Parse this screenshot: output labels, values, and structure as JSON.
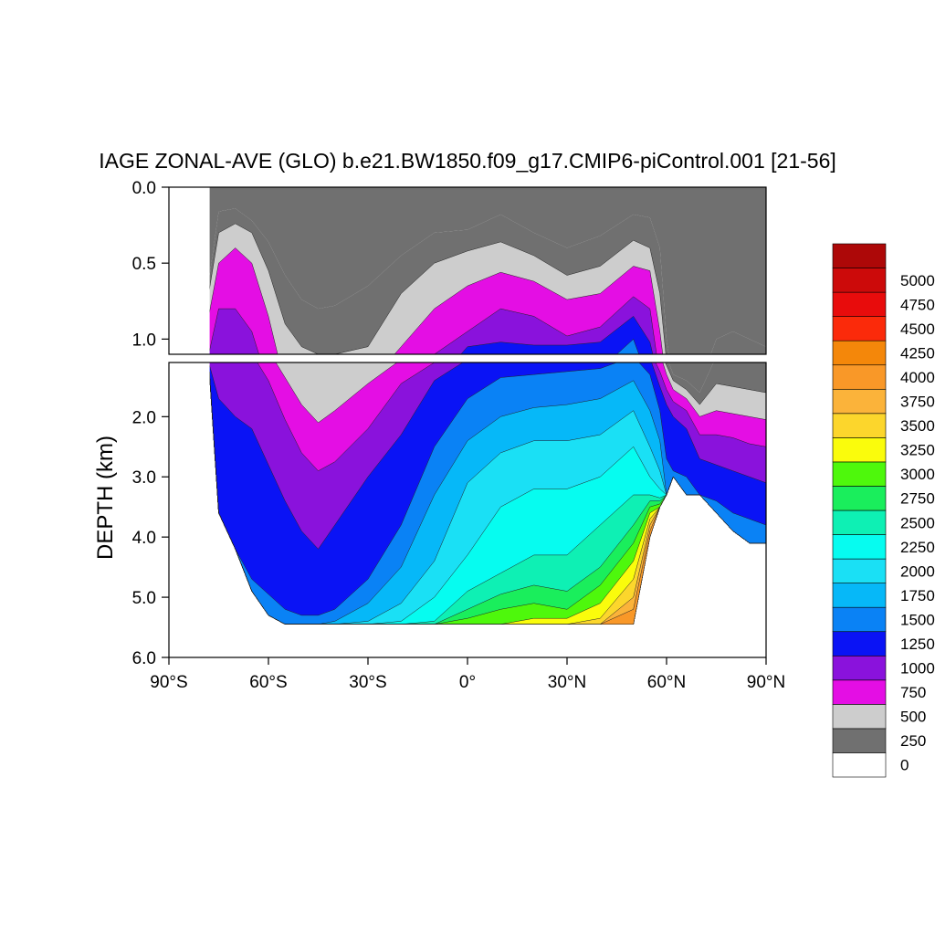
{
  "chart_data": {
    "type": "contour",
    "title": "IAGE ZONAL-AVE (GLO) b.e21.BW1850.f09_g17.CMIP6-piControl.001 [21-56]",
    "ylabel": "DEPTH (km)",
    "xlabel": "",
    "xlim": [
      -90,
      90
    ],
    "x_ticks": [
      {
        "value": -90,
        "label": "90°S"
      },
      {
        "value": -60,
        "label": "60°S"
      },
      {
        "value": -30,
        "label": "30°S"
      },
      {
        "value": 0,
        "label": "0°"
      },
      {
        "value": 30,
        "label": "30°N"
      },
      {
        "value": 60,
        "label": "60°N"
      },
      {
        "value": 90,
        "label": "90°N"
      }
    ],
    "panels": [
      {
        "name": "upper",
        "ylim": [
          0,
          1.1
        ],
        "y_ticks": [
          {
            "value": 0,
            "label": "0.0"
          },
          {
            "value": 0.5,
            "label": "0.5"
          },
          {
            "value": 1.0,
            "label": "1.0"
          }
        ]
      },
      {
        "name": "lower",
        "ylim": [
          1.1,
          6.0
        ],
        "y_ticks": [
          {
            "value": 2,
            "label": "2.0"
          },
          {
            "value": 3,
            "label": "3.0"
          },
          {
            "value": 4,
            "label": "4.0"
          },
          {
            "value": 5,
            "label": "5.0"
          },
          {
            "value": 6,
            "label": "6.0"
          }
        ]
      }
    ],
    "colorbar": {
      "levels": [
        {
          "label": "0",
          "color": "#ffffff"
        },
        {
          "label": "250",
          "color": "#707070"
        },
        {
          "label": "500",
          "color": "#cdcdcd"
        },
        {
          "label": "750",
          "color": "#e40ee4"
        },
        {
          "label": "1000",
          "color": "#8a12dc"
        },
        {
          "label": "1250",
          "color": "#0a13f5"
        },
        {
          "label": "1500",
          "color": "#0a82f5"
        },
        {
          "label": "1750",
          "color": "#06b8f8"
        },
        {
          "label": "2000",
          "color": "#1ae0f5"
        },
        {
          "label": "2250",
          "color": "#06fcf0"
        },
        {
          "label": "2500",
          "color": "#0ef0b4"
        },
        {
          "label": "2750",
          "color": "#1aee5c"
        },
        {
          "label": "3000",
          "color": "#4ef80c"
        },
        {
          "label": "3250",
          "color": "#fafc0c"
        },
        {
          "label": "3500",
          "color": "#fcd62c"
        },
        {
          "label": "3750",
          "color": "#fbb33a"
        },
        {
          "label": "4000",
          "color": "#f99828"
        },
        {
          "label": "4250",
          "color": "#f4870a"
        },
        {
          "label": "4500",
          "color": "#fb2a0a"
        },
        {
          "label": "4750",
          "color": "#e80c0c"
        },
        {
          "label": "5000",
          "color": "#cc0a0a"
        },
        {
          "label": "",
          "color": "#ad0808"
        }
      ]
    },
    "age_field": {
      "lat": [
        -78,
        -75,
        -70,
        -65,
        -60,
        -55,
        -50,
        -45,
        -40,
        -30,
        -20,
        -10,
        0,
        10,
        20,
        30,
        40,
        50,
        55,
        58,
        60,
        62,
        66,
        70,
        75,
        80,
        85,
        90
      ],
      "bottom_km": [
        1.1,
        3.6,
        4.2,
        4.9,
        5.3,
        5.45,
        5.45,
        5.45,
        5.45,
        5.45,
        5.45,
        5.45,
        5.45,
        5.45,
        5.45,
        5.45,
        5.45,
        5.45,
        4.0,
        3.5,
        3.3,
        3.0,
        3.3,
        3.3,
        3.6,
        3.9,
        4.1,
        4.1
      ],
      "contour_depths_km": [
        [
          0.62,
          0.16,
          0.14,
          0.22,
          0.36,
          0.58,
          0.74,
          0.8,
          0.78,
          0.65,
          0.45,
          0.3,
          0.28,
          0.18,
          0.3,
          0.4,
          0.32,
          0.18,
          0.2,
          0.4,
          1.0,
          1.3,
          1.4,
          1.6,
          1.0,
          0.95,
          1.0,
          1.05
        ],
        [
          0.7,
          0.3,
          0.24,
          0.3,
          0.55,
          0.9,
          1.05,
          1.1,
          1.1,
          1.05,
          0.7,
          0.5,
          0.42,
          0.36,
          0.45,
          0.58,
          0.52,
          0.35,
          0.4,
          0.7,
          1.15,
          1.4,
          1.55,
          1.8,
          1.45,
          1.5,
          1.55,
          1.6
        ],
        [
          0.85,
          0.5,
          0.4,
          0.5,
          0.85,
          1.35,
          1.8,
          2.1,
          1.9,
          1.45,
          1.05,
          0.8,
          0.65,
          0.56,
          0.62,
          0.74,
          0.7,
          0.52,
          0.55,
          0.95,
          1.3,
          1.55,
          1.7,
          2.0,
          1.9,
          1.95,
          2.0,
          2.05
        ],
        [
          1.1,
          0.8,
          0.8,
          0.95,
          1.4,
          2.05,
          2.6,
          2.9,
          2.75,
          2.2,
          1.45,
          1.1,
          0.95,
          0.8,
          0.85,
          0.98,
          0.92,
          0.72,
          0.8,
          1.25,
          1.55,
          1.75,
          1.9,
          2.3,
          2.3,
          2.35,
          2.45,
          2.5
        ],
        [
          1.4,
          1.7,
          2.0,
          2.2,
          2.8,
          3.4,
          3.9,
          4.2,
          3.8,
          3.0,
          2.3,
          1.4,
          1.05,
          1.02,
          1.04,
          1.04,
          1.02,
          0.85,
          1.02,
          1.5,
          1.8,
          2.0,
          2.2,
          2.7,
          2.8,
          2.9,
          3.0,
          3.1
        ],
        [
          9,
          4.3,
          4.4,
          4.7,
          4.95,
          5.2,
          5.3,
          5.3,
          5.2,
          4.7,
          3.8,
          2.5,
          1.7,
          1.35,
          1.3,
          1.25,
          1.2,
          1.0,
          1.3,
          1.9,
          2.7,
          2.9,
          3.0,
          3.3,
          3.4,
          3.6,
          3.7,
          3.8
        ],
        [
          9,
          9,
          9,
          9,
          9,
          5.45,
          5.45,
          5.45,
          5.4,
          5.1,
          4.5,
          3.3,
          2.4,
          2.0,
          1.85,
          1.8,
          1.7,
          1.4,
          1.9,
          2.4,
          9,
          9,
          9,
          9,
          9,
          9,
          9,
          9
        ],
        [
          9,
          9,
          9,
          9,
          9,
          9,
          9,
          9,
          9,
          5.4,
          5.1,
          4.4,
          3.1,
          2.6,
          2.4,
          2.4,
          2.3,
          1.9,
          2.5,
          2.9,
          9,
          9,
          9,
          9,
          9,
          9,
          9,
          9
        ],
        [
          9,
          9,
          9,
          9,
          9,
          9,
          9,
          9,
          9,
          9,
          5.4,
          5.0,
          4.3,
          3.5,
          3.2,
          3.2,
          3.0,
          2.5,
          3.0,
          3.2,
          9,
          9,
          9,
          9,
          9,
          9,
          9,
          9
        ],
        [
          9,
          9,
          9,
          9,
          9,
          9,
          9,
          9,
          9,
          9,
          9,
          5.4,
          4.9,
          4.6,
          4.3,
          4.3,
          3.8,
          3.3,
          3.3,
          3.35,
          9,
          9,
          9,
          9,
          9,
          9,
          9,
          9
        ],
        [
          9,
          9,
          9,
          9,
          9,
          9,
          9,
          9,
          9,
          9,
          9,
          9,
          5.2,
          4.95,
          4.8,
          4.9,
          4.5,
          3.8,
          3.4,
          3.4,
          9,
          9,
          9,
          9,
          9,
          9,
          9,
          9
        ],
        [
          9,
          9,
          9,
          9,
          9,
          9,
          9,
          9,
          9,
          9,
          9,
          9,
          5.35,
          5.2,
          5.1,
          5.2,
          4.8,
          4.1,
          3.5,
          3.45,
          9,
          9,
          9,
          9,
          9,
          9,
          9,
          9
        ],
        [
          9,
          9,
          9,
          9,
          9,
          9,
          9,
          9,
          9,
          9,
          9,
          9,
          9,
          9,
          5.35,
          5.35,
          5.1,
          4.4,
          3.6,
          3.5,
          9,
          9,
          9,
          9,
          9,
          9,
          9,
          9
        ],
        [
          9,
          9,
          9,
          9,
          9,
          9,
          9,
          9,
          9,
          9,
          9,
          9,
          9,
          9,
          9,
          9,
          5.35,
          4.7,
          3.7,
          3.55,
          9,
          9,
          9,
          9,
          9,
          9,
          9,
          9
        ],
        [
          9,
          9,
          9,
          9,
          9,
          9,
          9,
          9,
          9,
          9,
          9,
          9,
          9,
          9,
          9,
          9,
          9,
          5.0,
          3.8,
          3.6,
          9,
          9,
          9,
          9,
          9,
          9,
          9,
          9
        ],
        [
          9,
          9,
          9,
          9,
          9,
          9,
          9,
          9,
          9,
          9,
          9,
          9,
          9,
          9,
          9,
          9,
          9,
          5.2,
          3.9,
          3.7,
          9,
          9,
          9,
          9,
          9,
          9,
          9,
          9
        ]
      ]
    }
  }
}
